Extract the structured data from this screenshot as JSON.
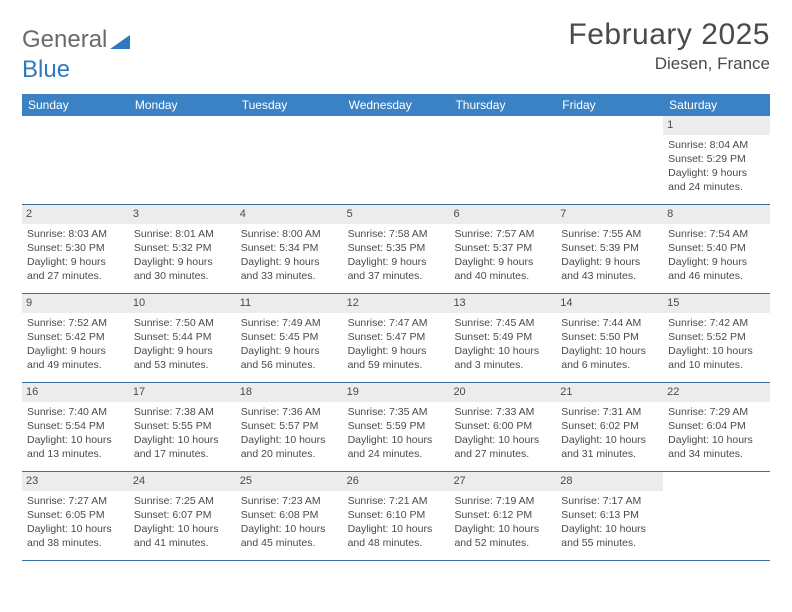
{
  "logo": {
    "text1": "General",
    "text2": "Blue"
  },
  "title": "February 2025",
  "location": "Diesen, France",
  "colors": {
    "header_bg": "#3b82c4",
    "header_text": "#ffffff",
    "row_border": "#3b6fa0",
    "daynum_bg": "#ececec",
    "body_text": "#4a4a4a",
    "logo_gray": "#6a6a6a",
    "logo_blue": "#2f7abf",
    "page_bg": "#ffffff"
  },
  "day_names": [
    "Sunday",
    "Monday",
    "Tuesday",
    "Wednesday",
    "Thursday",
    "Friday",
    "Saturday"
  ],
  "weeks": [
    [
      {
        "n": "",
        "empty": true
      },
      {
        "n": "",
        "empty": true
      },
      {
        "n": "",
        "empty": true
      },
      {
        "n": "",
        "empty": true
      },
      {
        "n": "",
        "empty": true
      },
      {
        "n": "",
        "empty": true
      },
      {
        "n": "1",
        "sunrise": "8:04 AM",
        "sunset": "5:29 PM",
        "daylight": "9 hours and 24 minutes."
      }
    ],
    [
      {
        "n": "2",
        "sunrise": "8:03 AM",
        "sunset": "5:30 PM",
        "daylight": "9 hours and 27 minutes."
      },
      {
        "n": "3",
        "sunrise": "8:01 AM",
        "sunset": "5:32 PM",
        "daylight": "9 hours and 30 minutes."
      },
      {
        "n": "4",
        "sunrise": "8:00 AM",
        "sunset": "5:34 PM",
        "daylight": "9 hours and 33 minutes."
      },
      {
        "n": "5",
        "sunrise": "7:58 AM",
        "sunset": "5:35 PM",
        "daylight": "9 hours and 37 minutes."
      },
      {
        "n": "6",
        "sunrise": "7:57 AM",
        "sunset": "5:37 PM",
        "daylight": "9 hours and 40 minutes."
      },
      {
        "n": "7",
        "sunrise": "7:55 AM",
        "sunset": "5:39 PM",
        "daylight": "9 hours and 43 minutes."
      },
      {
        "n": "8",
        "sunrise": "7:54 AM",
        "sunset": "5:40 PM",
        "daylight": "9 hours and 46 minutes."
      }
    ],
    [
      {
        "n": "9",
        "sunrise": "7:52 AM",
        "sunset": "5:42 PM",
        "daylight": "9 hours and 49 minutes."
      },
      {
        "n": "10",
        "sunrise": "7:50 AM",
        "sunset": "5:44 PM",
        "daylight": "9 hours and 53 minutes."
      },
      {
        "n": "11",
        "sunrise": "7:49 AM",
        "sunset": "5:45 PM",
        "daylight": "9 hours and 56 minutes."
      },
      {
        "n": "12",
        "sunrise": "7:47 AM",
        "sunset": "5:47 PM",
        "daylight": "9 hours and 59 minutes."
      },
      {
        "n": "13",
        "sunrise": "7:45 AM",
        "sunset": "5:49 PM",
        "daylight": "10 hours and 3 minutes."
      },
      {
        "n": "14",
        "sunrise": "7:44 AM",
        "sunset": "5:50 PM",
        "daylight": "10 hours and 6 minutes."
      },
      {
        "n": "15",
        "sunrise": "7:42 AM",
        "sunset": "5:52 PM",
        "daylight": "10 hours and 10 minutes."
      }
    ],
    [
      {
        "n": "16",
        "sunrise": "7:40 AM",
        "sunset": "5:54 PM",
        "daylight": "10 hours and 13 minutes."
      },
      {
        "n": "17",
        "sunrise": "7:38 AM",
        "sunset": "5:55 PM",
        "daylight": "10 hours and 17 minutes."
      },
      {
        "n": "18",
        "sunrise": "7:36 AM",
        "sunset": "5:57 PM",
        "daylight": "10 hours and 20 minutes."
      },
      {
        "n": "19",
        "sunrise": "7:35 AM",
        "sunset": "5:59 PM",
        "daylight": "10 hours and 24 minutes."
      },
      {
        "n": "20",
        "sunrise": "7:33 AM",
        "sunset": "6:00 PM",
        "daylight": "10 hours and 27 minutes."
      },
      {
        "n": "21",
        "sunrise": "7:31 AM",
        "sunset": "6:02 PM",
        "daylight": "10 hours and 31 minutes."
      },
      {
        "n": "22",
        "sunrise": "7:29 AM",
        "sunset": "6:04 PM",
        "daylight": "10 hours and 34 minutes."
      }
    ],
    [
      {
        "n": "23",
        "sunrise": "7:27 AM",
        "sunset": "6:05 PM",
        "daylight": "10 hours and 38 minutes."
      },
      {
        "n": "24",
        "sunrise": "7:25 AM",
        "sunset": "6:07 PM",
        "daylight": "10 hours and 41 minutes."
      },
      {
        "n": "25",
        "sunrise": "7:23 AM",
        "sunset": "6:08 PM",
        "daylight": "10 hours and 45 minutes."
      },
      {
        "n": "26",
        "sunrise": "7:21 AM",
        "sunset": "6:10 PM",
        "daylight": "10 hours and 48 minutes."
      },
      {
        "n": "27",
        "sunrise": "7:19 AM",
        "sunset": "6:12 PM",
        "daylight": "10 hours and 52 minutes."
      },
      {
        "n": "28",
        "sunrise": "7:17 AM",
        "sunset": "6:13 PM",
        "daylight": "10 hours and 55 minutes."
      },
      {
        "n": "",
        "empty": true
      }
    ]
  ],
  "labels": {
    "sunrise": "Sunrise:",
    "sunset": "Sunset:",
    "daylight": "Daylight:"
  }
}
